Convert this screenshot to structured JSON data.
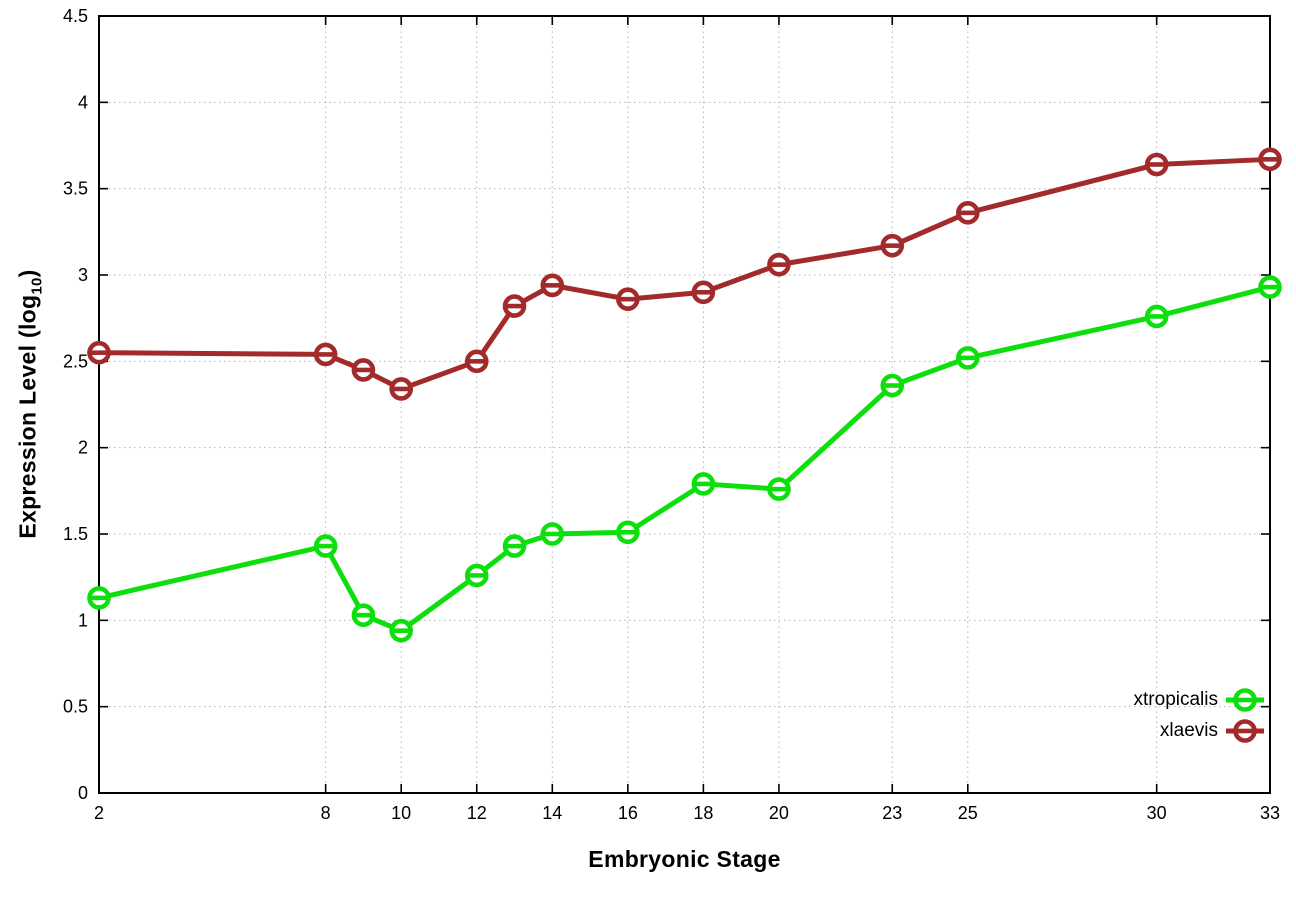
{
  "figure": {
    "xlabel": "Embryonic Stage",
    "ylabel_main": "Expression Level (log",
    "ylabel_sub": "10",
    "ylabel_end": ")"
  },
  "chart_data": {
    "type": "line",
    "title": "",
    "xlabel": "Embryonic Stage",
    "ylabel": "Expression Level (log10)",
    "x": [
      2,
      8,
      9,
      10,
      12,
      13,
      14,
      16,
      18,
      20,
      23,
      25,
      30,
      33
    ],
    "series": [
      {
        "name": "xtropicalis",
        "color": "#0ddf0d",
        "values": [
          1.13,
          1.43,
          1.03,
          0.94,
          1.26,
          1.43,
          1.5,
          1.51,
          1.79,
          1.76,
          2.36,
          2.52,
          2.76,
          2.93
        ]
      },
      {
        "name": "xlaevis",
        "color": "#a22a2a",
        "values": [
          2.55,
          2.54,
          2.45,
          2.34,
          2.5,
          2.82,
          2.94,
          2.86,
          2.9,
          3.06,
          3.17,
          3.36,
          3.64,
          3.67
        ]
      }
    ],
    "xticks": {
      "values": [
        2,
        8,
        10,
        12,
        14,
        16,
        18,
        20,
        23,
        25,
        30,
        33
      ],
      "labels": [
        "2",
        "8",
        "10",
        "12",
        "14",
        "16",
        "18",
        "20",
        "23",
        "25",
        "30",
        "33"
      ]
    },
    "yticks": {
      "values": [
        0,
        0.5,
        1,
        1.5,
        2,
        2.5,
        3,
        3.5,
        4,
        4.5
      ],
      "labels": [
        "0",
        "0.5",
        "1",
        "1.5",
        "2",
        "2.5",
        "3",
        "3.5",
        "4",
        "4.5"
      ]
    },
    "xlim": [
      2,
      33
    ],
    "ylim": [
      0,
      4.5
    ],
    "grid": true,
    "grid_color": "#b3b3b3",
    "border_color": "#000000",
    "background": "#ffffff",
    "legend_position": "inside-bottom-right",
    "marker": "open-circle-with-dash"
  }
}
